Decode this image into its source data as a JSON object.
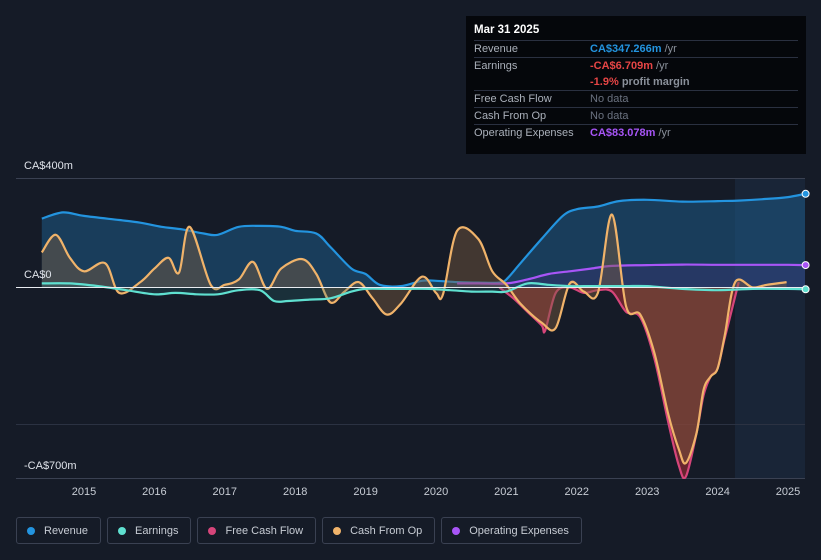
{
  "tooltip": {
    "date": "Mar 31 2025",
    "rows": {
      "revenue": {
        "label": "Revenue",
        "value": "CA$347.266m",
        "unit": "/yr"
      },
      "earnings": {
        "label": "Earnings",
        "value": "-CA$6.709m",
        "unit": "/yr"
      },
      "margin": {
        "value": "-1.9%",
        "suffix": "profit margin"
      },
      "fcf": {
        "label": "Free Cash Flow",
        "value": "No data"
      },
      "cfo": {
        "label": "Cash From Op",
        "value": "No data"
      },
      "opex": {
        "label": "Operating Expenses",
        "value": "CA$83.078m",
        "unit": "/yr"
      }
    }
  },
  "legend": [
    {
      "label": "Revenue",
      "color": "#2394df"
    },
    {
      "label": "Earnings",
      "color": "#5fe0d0"
    },
    {
      "label": "Free Cash Flow",
      "color": "#d6457a"
    },
    {
      "label": "Cash From Op",
      "color": "#f0b36a"
    },
    {
      "label": "Operating Expenses",
      "color": "#a855f7"
    }
  ],
  "chart_data": {
    "type": "area",
    "title": "",
    "y_tick_labels": {
      "top": "CA$400m",
      "zero": "CA$0",
      "bottom": "-CA$700m"
    },
    "ylim": [
      -700,
      400
    ],
    "x_tick_labels": [
      "2015",
      "2016",
      "2017",
      "2018",
      "2019",
      "2020",
      "2021",
      "2022",
      "2023",
      "2024",
      "2025"
    ],
    "series": [
      {
        "name": "Revenue",
        "color": "#2394df",
        "x": [
          2014.4,
          2014.7,
          2015.0,
          2015.5,
          2015.8,
          2016.1,
          2016.4,
          2016.7,
          2016.9,
          2017.2,
          2017.5,
          2017.8,
          2018.0,
          2018.3,
          2018.5,
          2018.8,
          2019.0,
          2019.2,
          2019.5,
          2019.8,
          2020.0,
          2020.3,
          2020.6,
          2020.9,
          2021.0,
          2021.2,
          2021.5,
          2021.8,
          2022.0,
          2022.3,
          2022.6,
          2023.0,
          2023.5,
          2024.0,
          2024.3,
          2024.7,
          2025.0,
          2025.25
        ],
        "values": [
          255,
          278,
          265,
          250,
          240,
          225,
          215,
          200,
          195,
          225,
          228,
          225,
          210,
          200,
          150,
          70,
          50,
          10,
          5,
          25,
          25,
          20,
          18,
          18,
          30,
          90,
          180,
          265,
          290,
          300,
          320,
          325,
          318,
          320,
          322,
          328,
          335,
          347
        ]
      },
      {
        "name": "Earnings",
        "color": "#5fe0d0",
        "x": [
          2014.4,
          2014.8,
          2015.2,
          2015.6,
          2016.0,
          2016.3,
          2016.6,
          2016.9,
          2017.2,
          2017.5,
          2017.7,
          2017.9,
          2018.2,
          2018.5,
          2018.8,
          2019.0,
          2019.3,
          2019.6,
          2019.9,
          2020.2,
          2020.5,
          2020.8,
          2021.0,
          2021.3,
          2021.6,
          2021.9,
          2022.1,
          2022.4,
          2022.7,
          2023.0,
          2023.5,
          2024.0,
          2024.5,
          2025.0,
          2025.25
        ],
        "values": [
          15,
          15,
          5,
          -10,
          -25,
          -20,
          -25,
          -25,
          -10,
          -10,
          -50,
          -50,
          -45,
          -40,
          -15,
          -5,
          -5,
          -5,
          -5,
          -10,
          -15,
          -15,
          -15,
          15,
          10,
          5,
          5,
          5,
          5,
          5,
          -5,
          -10,
          -5,
          -5,
          -6.7
        ]
      },
      {
        "name": "Free Cash Flow",
        "color": "#d6457a",
        "x": [
          2020.9,
          2021.1,
          2021.3,
          2021.5,
          2021.55,
          2021.7,
          2021.9,
          2022.1,
          2022.3,
          2022.5,
          2022.7,
          2022.9,
          2023.1,
          2023.3,
          2023.45,
          2023.55,
          2023.7,
          2023.8,
          2023.9,
          2024.0,
          2024.1,
          2024.3
        ],
        "values": [
          0,
          -40,
          -90,
          -140,
          -160,
          -20,
          0,
          -20,
          -10,
          -15,
          -90,
          -110,
          -260,
          -500,
          -660,
          -700,
          -540,
          -400,
          -330,
          -300,
          -190,
          20
        ]
      },
      {
        "name": "Cash From Op",
        "color": "#f0b36a",
        "x": [
          2014.4,
          2014.6,
          2014.8,
          2015.0,
          2015.3,
          2015.5,
          2015.8,
          2016.0,
          2016.2,
          2016.35,
          2016.5,
          2016.8,
          2017.0,
          2017.2,
          2017.4,
          2017.6,
          2017.8,
          2018.1,
          2018.3,
          2018.5,
          2018.7,
          2018.9,
          2019.1,
          2019.3,
          2019.5,
          2019.8,
          2020.0,
          2020.1,
          2020.3,
          2020.6,
          2020.8,
          2021.0,
          2021.2,
          2021.5,
          2021.7,
          2021.9,
          2022.1,
          2022.3,
          2022.5,
          2022.7,
          2022.9,
          2023.1,
          2023.3,
          2023.45,
          2023.55,
          2023.7,
          2023.8,
          2023.9,
          2024.0,
          2024.1,
          2024.25,
          2024.5,
          2024.7,
          2024.98
        ],
        "values": [
          130,
          195,
          110,
          60,
          90,
          -20,
          20,
          70,
          110,
          55,
          225,
          10,
          10,
          30,
          95,
          -5,
          70,
          105,
          50,
          -55,
          -15,
          20,
          -40,
          -100,
          -60,
          40,
          -20,
          -25,
          210,
          180,
          60,
          10,
          -60,
          -130,
          -150,
          15,
          -15,
          -20,
          270,
          -70,
          -100,
          -240,
          -470,
          -600,
          -650,
          -540,
          -380,
          -330,
          -300,
          -180,
          20,
          0,
          10,
          20
        ]
      },
      {
        "name": "Operating Expenses",
        "color": "#a855f7",
        "x": [
          2020.3,
          2020.6,
          2021.0,
          2021.3,
          2021.6,
          2021.9,
          2022.2,
          2022.5,
          2023.0,
          2023.5,
          2024.0,
          2024.5,
          2025.0,
          2025.25
        ],
        "values": [
          15,
          15,
          15,
          30,
          50,
          60,
          70,
          80,
          83,
          85,
          84,
          84,
          84,
          83.1
        ]
      }
    ]
  }
}
